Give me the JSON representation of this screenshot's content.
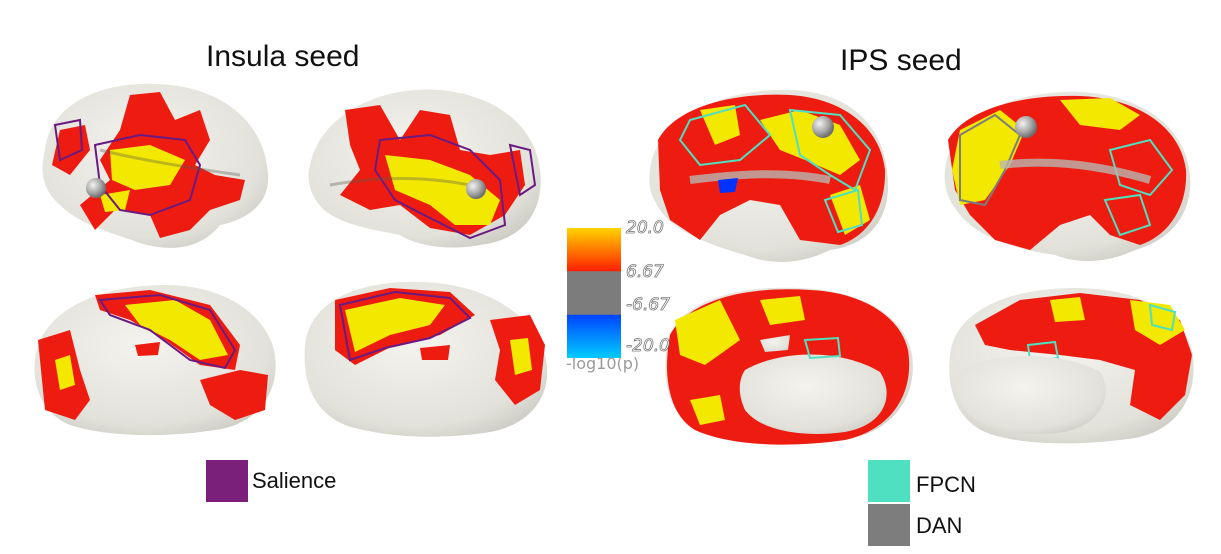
{
  "titles": {
    "insula": "Insula seed",
    "ips": "IPS seed"
  },
  "colorbar": {
    "tick_labels": [
      "20.0",
      "6.67",
      "-6.67",
      "-20.0"
    ],
    "axis_label": "-log10(p)",
    "colors": {
      "high": "#ffd400",
      "positive": "#ff2000",
      "neutral": "#7c7c7c",
      "negative": "#0033ff",
      "low": "#00ccff"
    }
  },
  "legend": {
    "insula": [
      {
        "label": "Salience",
        "color": "#7a1f7a"
      }
    ],
    "ips": [
      {
        "label": "FPCN",
        "color": "#4ee0c0"
      },
      {
        "label": "DAN",
        "color": "#7d7d7d"
      }
    ]
  },
  "colors": {
    "cortex": "#e3e2dc",
    "activation": "#ee1c10",
    "peak": "#f2e800",
    "seed_marker": "#9c9c9c"
  }
}
